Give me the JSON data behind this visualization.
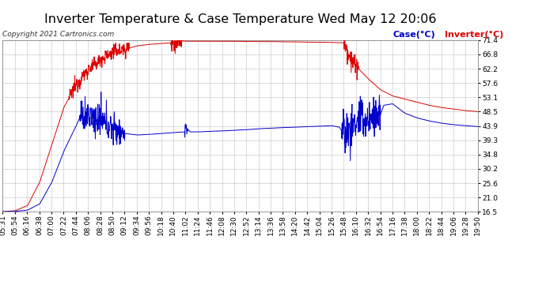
{
  "title": "Inverter Temperature & Case Temperature Wed May 12 20:06",
  "copyright": "Copyright 2021 Cartronics.com",
  "legend_case": "Case(°C)",
  "legend_inverter": "Inverter(°C)",
  "ylabel_right_ticks": [
    16.5,
    21.0,
    25.6,
    30.2,
    34.8,
    39.3,
    43.9,
    48.5,
    53.1,
    57.6,
    62.2,
    66.8,
    71.4
  ],
  "ymin": 16.5,
  "ymax": 71.4,
  "background_color": "#ffffff",
  "plot_bg_color": "#ffffff",
  "grid_color": "#c0c0c0",
  "title_fontsize": 12,
  "tick_fontsize": 6.5,
  "inverter_color": "#dd0000",
  "case_color": "#0000cc",
  "x_labels": [
    "05:31",
    "05:54",
    "06:16",
    "06:38",
    "07:00",
    "07:22",
    "07:44",
    "08:06",
    "08:28",
    "08:50",
    "09:12",
    "09:34",
    "09:56",
    "10:18",
    "10:40",
    "11:02",
    "11:24",
    "11:46",
    "12:08",
    "12:30",
    "12:52",
    "13:14",
    "13:36",
    "13:58",
    "14:20",
    "14:42",
    "15:04",
    "15:26",
    "15:48",
    "16:10",
    "16:32",
    "16:54",
    "17:16",
    "17:38",
    "18:00",
    "18:22",
    "18:44",
    "19:06",
    "19:28",
    "19:50"
  ]
}
